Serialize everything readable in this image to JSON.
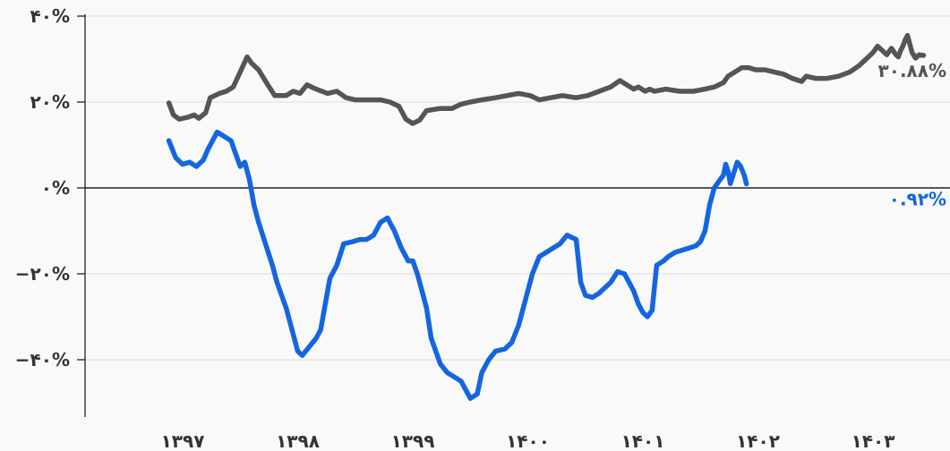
{
  "chart_data": {
    "type": "line",
    "title": "",
    "xlabel": "",
    "ylabel": "",
    "ylim": [
      -53,
      40
    ],
    "xlim": [
      1396.5,
      1403.7
    ],
    "x_ticks": [
      1397,
      1398,
      1399,
      1400,
      1401,
      1402,
      1403
    ],
    "x_tick_labels": [
      "۱۳۹۷",
      "۱۳۹۸",
      "۱۳۹۹",
      "۱۴۰۰",
      "۱۴۰۱",
      "۱۴۰۲",
      "۱۴۰۳"
    ],
    "y_ticks": [
      -40,
      -20,
      0,
      20,
      40
    ],
    "y_tick_labels": [
      "−۴۰%",
      "−۲۰%",
      "۰%",
      "۲۰%",
      "۴۰%"
    ],
    "grid": true,
    "colors": {
      "series_gray": "#555555",
      "series_blue": "#1565e0",
      "grid": "#e3e3e3",
      "axis": "#222222"
    },
    "series": [
      {
        "end_label": "۳۰.۸۸%",
        "color": "#555555",
        "points": [
          [
            1396.88,
            19.8
          ],
          [
            1396.92,
            17
          ],
          [
            1396.97,
            16
          ],
          [
            1397.05,
            16.5
          ],
          [
            1397.1,
            17
          ],
          [
            1397.14,
            16.2
          ],
          [
            1397.2,
            17.5
          ],
          [
            1397.24,
            21
          ],
          [
            1397.32,
            22
          ],
          [
            1397.38,
            22.5
          ],
          [
            1397.44,
            23.5
          ],
          [
            1397.5,
            27
          ],
          [
            1397.56,
            30.5
          ],
          [
            1397.6,
            29
          ],
          [
            1397.66,
            27.5
          ],
          [
            1397.74,
            24
          ],
          [
            1397.8,
            21.5
          ],
          [
            1397.9,
            21.5
          ],
          [
            1397.96,
            22.5
          ],
          [
            1398.02,
            22
          ],
          [
            1398.08,
            24
          ],
          [
            1398.16,
            23
          ],
          [
            1398.26,
            22
          ],
          [
            1398.34,
            22.5
          ],
          [
            1398.42,
            21
          ],
          [
            1398.5,
            20.5
          ],
          [
            1398.6,
            20.5
          ],
          [
            1398.72,
            20.5
          ],
          [
            1398.8,
            20
          ],
          [
            1398.88,
            19
          ],
          [
            1398.94,
            16
          ],
          [
            1399.0,
            15
          ],
          [
            1399.06,
            15.8
          ],
          [
            1399.12,
            18
          ],
          [
            1399.24,
            18.5
          ],
          [
            1399.34,
            18.5
          ],
          [
            1399.42,
            19.5
          ],
          [
            1399.5,
            20
          ],
          [
            1399.6,
            20.5
          ],
          [
            1399.72,
            21
          ],
          [
            1399.82,
            21.5
          ],
          [
            1399.92,
            22
          ],
          [
            1400.02,
            21.5
          ],
          [
            1400.1,
            20.5
          ],
          [
            1400.2,
            21
          ],
          [
            1400.3,
            21.5
          ],
          [
            1400.42,
            21
          ],
          [
            1400.52,
            21.5
          ],
          [
            1400.62,
            22.5
          ],
          [
            1400.72,
            23.5
          ],
          [
            1400.8,
            25
          ],
          [
            1400.86,
            24
          ],
          [
            1400.92,
            23
          ],
          [
            1400.96,
            23.5
          ],
          [
            1401.02,
            22.5
          ],
          [
            1401.06,
            23
          ],
          [
            1401.1,
            22.5
          ],
          [
            1401.2,
            23
          ],
          [
            1401.32,
            22.5
          ],
          [
            1401.44,
            22.5
          ],
          [
            1401.54,
            23
          ],
          [
            1401.62,
            23.5
          ],
          [
            1401.7,
            24.5
          ],
          [
            1401.74,
            26
          ],
          [
            1401.8,
            27
          ],
          [
            1401.86,
            28
          ],
          [
            1401.92,
            28
          ],
          [
            1401.98,
            27.5
          ],
          [
            1402.06,
            27.5
          ],
          [
            1402.14,
            27
          ],
          [
            1402.22,
            26.5
          ],
          [
            1402.3,
            25.5
          ],
          [
            1402.38,
            24.8
          ],
          [
            1402.42,
            26
          ],
          [
            1402.5,
            25.5
          ],
          [
            1402.6,
            25.5
          ],
          [
            1402.7,
            26
          ],
          [
            1402.8,
            27
          ],
          [
            1402.88,
            28.5
          ],
          [
            1402.94,
            30
          ],
          [
            1403.0,
            31.5
          ],
          [
            1403.04,
            33
          ],
          [
            1403.08,
            32
          ],
          [
            1403.12,
            31
          ],
          [
            1403.16,
            32.5
          ],
          [
            1403.2,
            31
          ],
          [
            1403.22,
            30.5
          ],
          [
            1403.24,
            32
          ],
          [
            1403.26,
            33
          ],
          [
            1403.28,
            34.5
          ],
          [
            1403.3,
            35.5
          ],
          [
            1403.32,
            33.5
          ],
          [
            1403.34,
            31.5
          ],
          [
            1403.37,
            30.2
          ],
          [
            1403.4,
            31
          ],
          [
            1403.44,
            30.88
          ]
        ]
      },
      {
        "end_label": "۰.۹۲%",
        "color": "#1565e0",
        "points": [
          [
            1396.88,
            11
          ],
          [
            1396.94,
            7
          ],
          [
            1397.0,
            5.5
          ],
          [
            1397.06,
            6
          ],
          [
            1397.12,
            5
          ],
          [
            1397.18,
            6.5
          ],
          [
            1397.22,
            9
          ],
          [
            1397.26,
            11
          ],
          [
            1397.3,
            13
          ],
          [
            1397.36,
            12
          ],
          [
            1397.42,
            11
          ],
          [
            1397.46,
            8
          ],
          [
            1397.5,
            5
          ],
          [
            1397.54,
            6
          ],
          [
            1397.58,
            2
          ],
          [
            1397.62,
            -4
          ],
          [
            1397.66,
            -8
          ],
          [
            1397.72,
            -13
          ],
          [
            1397.78,
            -18
          ],
          [
            1397.82,
            -22
          ],
          [
            1397.86,
            -25
          ],
          [
            1397.9,
            -28
          ],
          [
            1397.95,
            -33
          ],
          [
            1398.0,
            -38
          ],
          [
            1398.04,
            -39
          ],
          [
            1398.1,
            -37
          ],
          [
            1398.16,
            -35
          ],
          [
            1398.2,
            -33
          ],
          [
            1398.24,
            -27
          ],
          [
            1398.28,
            -21
          ],
          [
            1398.34,
            -18
          ],
          [
            1398.4,
            -13
          ],
          [
            1398.48,
            -12.5
          ],
          [
            1398.54,
            -12
          ],
          [
            1398.6,
            -12
          ],
          [
            1398.66,
            -11
          ],
          [
            1398.72,
            -8
          ],
          [
            1398.78,
            -7
          ],
          [
            1398.84,
            -10
          ],
          [
            1398.9,
            -14
          ],
          [
            1398.96,
            -17
          ],
          [
            1399.0,
            -17
          ],
          [
            1399.04,
            -20
          ],
          [
            1399.08,
            -24
          ],
          [
            1399.12,
            -28
          ],
          [
            1399.16,
            -35
          ],
          [
            1399.2,
            -38
          ],
          [
            1399.24,
            -41
          ],
          [
            1399.3,
            -43
          ],
          [
            1399.36,
            -44
          ],
          [
            1399.42,
            -45
          ],
          [
            1399.46,
            -47
          ],
          [
            1399.5,
            -49
          ],
          [
            1399.56,
            -48
          ],
          [
            1399.6,
            -43
          ],
          [
            1399.66,
            -40
          ],
          [
            1399.72,
            -38
          ],
          [
            1399.8,
            -37.5
          ],
          [
            1399.86,
            -36
          ],
          [
            1399.92,
            -32
          ],
          [
            1399.98,
            -26
          ],
          [
            1400.04,
            -20
          ],
          [
            1400.1,
            -16
          ],
          [
            1400.16,
            -15
          ],
          [
            1400.22,
            -14
          ],
          [
            1400.28,
            -13
          ],
          [
            1400.34,
            -11
          ],
          [
            1400.38,
            -11.5
          ],
          [
            1400.42,
            -12
          ],
          [
            1400.46,
            -22
          ],
          [
            1400.5,
            -25
          ],
          [
            1400.56,
            -25.5
          ],
          [
            1400.62,
            -24.5
          ],
          [
            1400.66,
            -23.5
          ],
          [
            1400.72,
            -22
          ],
          [
            1400.78,
            -19.5
          ],
          [
            1400.84,
            -20
          ],
          [
            1400.88,
            -22
          ],
          [
            1400.92,
            -24
          ],
          [
            1400.96,
            -27
          ],
          [
            1401.0,
            -29
          ],
          [
            1401.04,
            -30
          ],
          [
            1401.08,
            -28.5
          ],
          [
            1401.12,
            -18
          ],
          [
            1401.18,
            -17
          ],
          [
            1401.22,
            -16
          ],
          [
            1401.28,
            -15
          ],
          [
            1401.34,
            -14.5
          ],
          [
            1401.4,
            -14
          ],
          [
            1401.46,
            -13.5
          ],
          [
            1401.5,
            -12.5
          ],
          [
            1401.54,
            -10
          ],
          [
            1401.58,
            -4
          ],
          [
            1401.62,
            0
          ],
          [
            1401.66,
            1.5
          ],
          [
            1401.7,
            3
          ],
          [
            1401.72,
            5.5
          ],
          [
            1401.74,
            4
          ],
          [
            1401.76,
            1
          ],
          [
            1401.79,
            3.5
          ],
          [
            1401.82,
            6
          ],
          [
            1401.85,
            5
          ],
          [
            1401.88,
            3
          ],
          [
            1401.9,
            0.92
          ]
        ]
      }
    ]
  }
}
